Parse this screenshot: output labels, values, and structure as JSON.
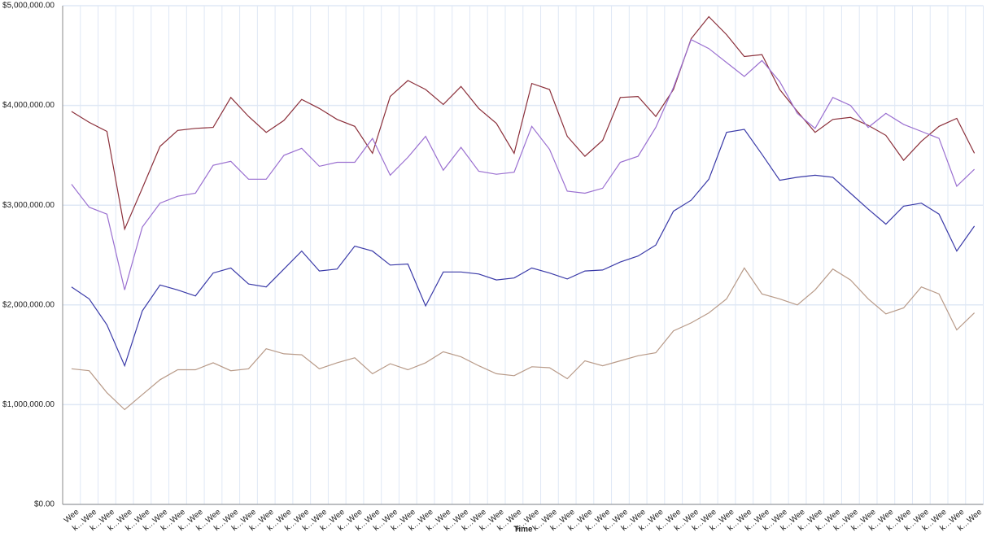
{
  "chart_data": {
    "type": "line",
    "x_label": "Time",
    "categories": [
      "Wee",
      "k…Wee",
      "k…Wee",
      "k…Wee",
      "k…Wee",
      "k…Wee",
      "k…Wee",
      "k…Wee",
      "k…Wee",
      "k…Wee",
      "k…Wee",
      "k…Wee",
      "k…Wee",
      "k…Wee",
      "k…Wee",
      "k…Wee",
      "k…Wee",
      "k…Wee",
      "k…Wee",
      "k…Wee",
      "k…Wee",
      "k…Wee",
      "k…Wee",
      "k…Wee",
      "k…Wee",
      "k…Wee",
      "k…Wee",
      "k…Wee",
      "k…Wee",
      "k…Wee",
      "k…Wee",
      "k…Wee",
      "k…Wee",
      "k…Wee",
      "k…Wee",
      "k…Wee",
      "k…Wee",
      "k…Wee",
      "k…Wee",
      "k…Wee",
      "k…Wee",
      "k…Wee",
      "k…Wee",
      "k…Wee",
      "k…Wee",
      "k…Wee",
      "k…Wee",
      "k…Wee",
      "k…Wee",
      "k…Wee",
      "k…Wee",
      "k…Wee"
    ],
    "series": [
      {
        "color": "#8b2f3a",
        "values": [
          3940000,
          3830000,
          3740000,
          2760000,
          3170000,
          3590000,
          3750000,
          3770000,
          3780000,
          4080000,
          3890000,
          3730000,
          3850000,
          4060000,
          3970000,
          3860000,
          3790000,
          3520000,
          4090000,
          4250000,
          4160000,
          4010000,
          4190000,
          3970000,
          3820000,
          3520000,
          4220000,
          4160000,
          3690000,
          3490000,
          3650000,
          4080000,
          4090000,
          3890000,
          4160000,
          4670000,
          4890000,
          4710000,
          4490000,
          4510000,
          4160000,
          3940000,
          3730000,
          3860000,
          3880000,
          3800000,
          3700000,
          3450000,
          3640000,
          3790000,
          3870000,
          3520000
        ]
      },
      {
        "color": "#9a6fd0",
        "values": [
          3210000,
          2980000,
          2910000,
          2150000,
          2780000,
          3020000,
          3090000,
          3120000,
          3400000,
          3440000,
          3260000,
          3260000,
          3500000,
          3570000,
          3390000,
          3430000,
          3430000,
          3670000,
          3300000,
          3480000,
          3690000,
          3350000,
          3580000,
          3340000,
          3310000,
          3330000,
          3790000,
          3560000,
          3140000,
          3120000,
          3170000,
          3430000,
          3490000,
          3780000,
          4180000,
          4660000,
          4570000,
          4430000,
          4290000,
          4450000,
          4240000,
          3920000,
          3770000,
          4080000,
          4000000,
          3780000,
          3920000,
          3810000,
          3740000,
          3670000,
          3190000,
          3360000
        ]
      },
      {
        "color": "#3a3aa8",
        "values": [
          2180000,
          2060000,
          1800000,
          1390000,
          1940000,
          2200000,
          2150000,
          2090000,
          2320000,
          2370000,
          2210000,
          2180000,
          2360000,
          2540000,
          2340000,
          2360000,
          2590000,
          2540000,
          2400000,
          2410000,
          1990000,
          2330000,
          2330000,
          2310000,
          2250000,
          2270000,
          2370000,
          2320000,
          2260000,
          2340000,
          2350000,
          2430000,
          2490000,
          2600000,
          2940000,
          3050000,
          3260000,
          3730000,
          3760000,
          3510000,
          3250000,
          3280000,
          3300000,
          3280000,
          3120000,
          2960000,
          2810000,
          2990000,
          3020000,
          2910000,
          2540000,
          2790000
        ]
      },
      {
        "color": "#b89a88",
        "values": [
          1360000,
          1340000,
          1120000,
          950000,
          1100000,
          1250000,
          1350000,
          1350000,
          1420000,
          1340000,
          1360000,
          1560000,
          1510000,
          1500000,
          1360000,
          1420000,
          1470000,
          1310000,
          1410000,
          1350000,
          1420000,
          1530000,
          1480000,
          1390000,
          1310000,
          1290000,
          1380000,
          1370000,
          1260000,
          1440000,
          1390000,
          1440000,
          1490000,
          1520000,
          1740000,
          1820000,
          1920000,
          2060000,
          2370000,
          2110000,
          2060000,
          2000000,
          2150000,
          2360000,
          2250000,
          2060000,
          1910000,
          1970000,
          2180000,
          2110000,
          1750000,
          1920000
        ]
      }
    ],
    "ylim": [
      0,
      5000000
    ],
    "yticks": [
      {
        "value": 0,
        "label": "$0.00"
      },
      {
        "value": 1000000,
        "label": "$1,000,000.00"
      },
      {
        "value": 2000000,
        "label": "$2,000,000.00"
      },
      {
        "value": 3000000,
        "label": "$3,000,000.00"
      },
      {
        "value": 4000000,
        "label": "$4,000,000.00"
      },
      {
        "value": 5000000,
        "label": "$5,000,000.00"
      }
    ],
    "grid": true
  }
}
